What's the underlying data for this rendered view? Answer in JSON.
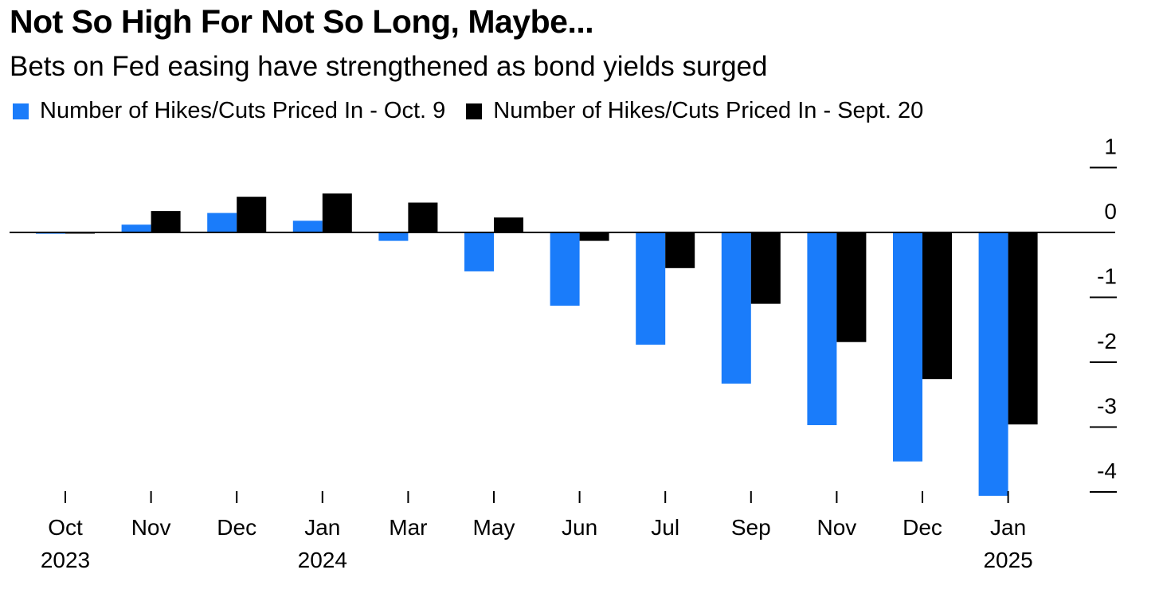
{
  "title": "Not So High For Not So Long, Maybe...",
  "subtitle": "Bets on Fed easing have strengthened as bond yields surged",
  "colors": {
    "oct9": "#1a7cfa",
    "sept20": "#000000"
  },
  "chart_data": {
    "type": "bar",
    "title": "Not So High For Not So Long, Maybe...",
    "subtitle": "Bets on Fed easing have strengthened as bond yields surged",
    "categories": [
      "Oct 2023",
      "Nov 2023",
      "Dec 2023",
      "Jan 2024",
      "Mar 2024",
      "May 2024",
      "Jun 2024",
      "Jul 2024",
      "Sep 2024",
      "Nov 2024",
      "Dec 2024",
      "Jan 2025"
    ],
    "tick_labels": [
      "Oct",
      "Nov",
      "Dec",
      "Jan",
      "Mar",
      "May",
      "Jun",
      "Jul",
      "Sep",
      "Nov",
      "Dec",
      "Jan"
    ],
    "year_labels": [
      {
        "index": 0,
        "label": "2023"
      },
      {
        "index": 3,
        "label": "2024"
      },
      {
        "index": 11,
        "label": "2025"
      }
    ],
    "series": [
      {
        "name": "Number of Hikes/Cuts Priced In - Oct. 9",
        "color": "#1a7cfa",
        "values": [
          -0.02,
          0.12,
          0.3,
          0.18,
          -0.13,
          -0.6,
          -1.13,
          -1.73,
          -2.33,
          -2.97,
          -3.53,
          -4.06
        ]
      },
      {
        "name": "Number of Hikes/Cuts Priced In - Sept. 20",
        "color": "#000000",
        "values": [
          -0.01,
          0.33,
          0.55,
          0.6,
          0.46,
          0.23,
          -0.13,
          -0.55,
          -1.1,
          -1.69,
          -2.26,
          -2.96
        ]
      }
    ],
    "xlabel": "",
    "ylabel": "",
    "ylim": [
      -4.1,
      1
    ],
    "yticks": [
      1,
      0,
      -1,
      -2,
      -3,
      -4
    ],
    "y_axis_position": "right",
    "grid": false,
    "legend_position": "top-left"
  }
}
